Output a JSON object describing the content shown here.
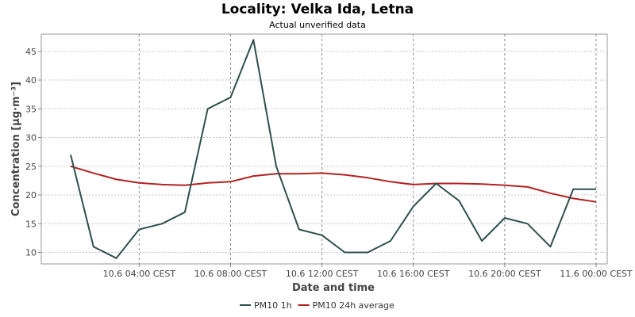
{
  "chart_data": {
    "type": "line",
    "title": "Locality: Velka Ida, Letna",
    "subtitle": "Actual unverified data",
    "xlabel": "Date and time",
    "ylabel": "Concentration [µg·m⁻³]",
    "ylim": [
      8,
      48
    ],
    "yticks": [
      10,
      15,
      20,
      25,
      30,
      35,
      40,
      45
    ],
    "x_tick_labels": [
      "10.6 04:00 CEST",
      "10.6 08:00 CEST",
      "10.6 12:00 CEST",
      "10.6 16:00 CEST",
      "10.6 20:00 CEST",
      "11.6 00:00 CEST"
    ],
    "x": [
      "10.6 01:00",
      "10.6 02:00",
      "10.6 03:00",
      "10.6 04:00",
      "10.6 05:00",
      "10.6 06:00",
      "10.6 07:00",
      "10.6 08:00",
      "10.6 09:00",
      "10.6 10:00",
      "10.6 11:00",
      "10.6 12:00",
      "10.6 13:00",
      "10.6 14:00",
      "10.6 15:00",
      "10.6 16:00",
      "10.6 17:00",
      "10.6 18:00",
      "10.6 19:00",
      "10.6 20:00",
      "10.6 21:00",
      "10.6 22:00",
      "10.6 23:00",
      "11.6 00:00"
    ],
    "series": [
      {
        "name": "PM10 1h",
        "color": "#2f4f4f",
        "values": [
          27,
          11,
          9,
          14,
          15,
          17,
          35,
          37,
          47,
          25,
          14,
          13,
          10,
          10,
          12,
          18,
          22,
          19,
          12,
          16,
          15,
          11,
          21,
          21
        ]
      },
      {
        "name": "PM10 24h average",
        "color": "#b22222",
        "values": [
          25,
          23.8,
          22.7,
          22.1,
          21.8,
          21.7,
          22.1,
          22.3,
          23.3,
          23.7,
          23.7,
          23.8,
          23.5,
          23.0,
          22.3,
          21.8,
          22.0,
          22.0,
          21.9,
          21.7,
          21.4,
          20.3,
          19.4,
          18.8
        ]
      }
    ],
    "grid": true,
    "legend_position": "bottom"
  }
}
